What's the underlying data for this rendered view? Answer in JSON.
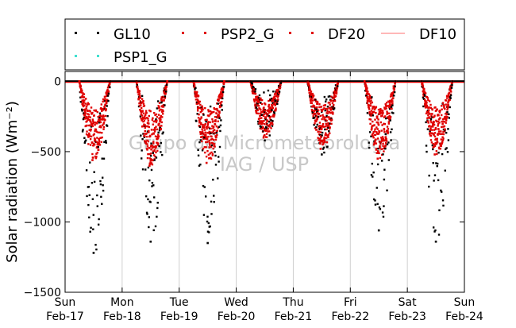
{
  "chart_data": {
    "type": "scatter",
    "ylabel": "Solar radiation (Wm⁻²)",
    "ylim": [
      -1500,
      70
    ],
    "yticks": [
      0,
      -500,
      -1000,
      -1500
    ],
    "ytick_labels": [
      "0",
      "−500",
      "−1000",
      "−1500"
    ],
    "x_range_days": [
      0,
      7
    ],
    "x_ticks": [
      {
        "day": 0,
        "weekday": "Sun",
        "date": "Feb-17"
      },
      {
        "day": 1,
        "weekday": "Mon",
        "date": "Feb-18"
      },
      {
        "day": 2,
        "weekday": "Tue",
        "date": "Feb-19"
      },
      {
        "day": 3,
        "weekday": "Wed",
        "date": "Feb-20"
      },
      {
        "day": 4,
        "weekday": "Thu",
        "date": "Feb-21"
      },
      {
        "day": 5,
        "weekday": "Fri",
        "date": "Feb-22"
      },
      {
        "day": 6,
        "weekday": "Sat",
        "date": "Feb-23"
      },
      {
        "day": 7,
        "weekday": "Sun",
        "date": "Feb-24"
      }
    ],
    "grid": "vertical",
    "legend_position": "top",
    "legend": [
      {
        "name": "GL10",
        "color": "#000000",
        "marker": "dot"
      },
      {
        "name": "PSP2_G",
        "color": "#e00000",
        "marker": "dot"
      },
      {
        "name": "DF20",
        "color": "#e00000",
        "marker": "dot"
      },
      {
        "name": "DF10",
        "color": "#ff7070",
        "marker": "line"
      },
      {
        "name": "PSP1_G",
        "color": "#40e0d0",
        "marker": "dot"
      }
    ],
    "watermark": [
      "Grupo de Micrometeorologia",
      "IAG / USP"
    ],
    "daily_extremes": [
      {
        "day": "Feb-17",
        "GL10_min": -1220,
        "PSP2_G_min": -560
      },
      {
        "day": "Feb-18",
        "GL10_min": -1140,
        "PSP2_G_min": -600
      },
      {
        "day": "Feb-19",
        "GL10_min": -1150,
        "PSP2_G_min": -580
      },
      {
        "day": "Feb-20",
        "GL10_min": -420,
        "PSP2_G_min": -400
      },
      {
        "day": "Feb-21",
        "GL10_min": -520,
        "PSP2_G_min": -480
      },
      {
        "day": "Feb-22",
        "GL10_min": -1060,
        "PSP2_G_min": -550
      },
      {
        "day": "Feb-23",
        "GL10_min": -1140,
        "PSP2_G_min": -520
      }
    ]
  }
}
